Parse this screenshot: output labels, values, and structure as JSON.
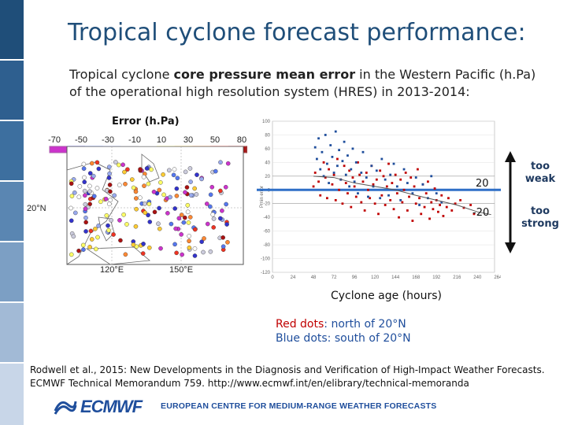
{
  "slide": {
    "title": "Tropical cyclone forecast performance:",
    "subtitle_pre": "Tropical cyclone ",
    "subtitle_bold": "core pressure mean error",
    "subtitle_post": " in the Western Pacific (h.Pa) of the operational high resolution system (HRES) in 2013-2014:",
    "colors": {
      "title": "#1f4e79",
      "accent": "#1f4e9c",
      "red_dots": "#c00000"
    }
  },
  "map": {
    "error_label": "Error (h.Pa)",
    "colorbar_ticks": [
      "-70",
      "-50",
      "-30",
      "-10",
      "10",
      "30",
      "50",
      "80"
    ],
    "colorbar_colors": [
      "#cc33cc",
      "#3333cc",
      "#5577ee",
      "#99aaee",
      "#ccccdd",
      "#ffffff",
      "#ffff66",
      "#ffcc33",
      "#ff8833",
      "#ee3322",
      "#aa1111"
    ],
    "lat_label": "20°N",
    "lon_labels": [
      "120°E",
      "150°E"
    ]
  },
  "annotations": {
    "plus_value": "20",
    "minus_value": "-20",
    "too_weak": "too weak",
    "too_strong": "too strong",
    "x_axis_label": "Cyclone age (hours)",
    "red_dots_key": "Red dots",
    "red_dots_desc": ": north of 20°N",
    "blue_dots_key": "Blue dots",
    "blue_dots_desc": ": south of 20°N"
  },
  "reference": {
    "text": "Rodwell et al., 2015: New Developments in the Diagnosis and Verification of High-Impact Weather Forecasts. ECMWF Technical Memorandum 759.   http://www.ecmwf.int/en/elibrary/technical-memoranda"
  },
  "footer": {
    "logo": "ECMWF",
    "tagline": "EUROPEAN CENTRE FOR MEDIUM-RANGE WEATHER FORECASTS"
  },
  "chart_data": {
    "type": "scatter",
    "title": "",
    "xlabel": "Cyclone age (hours)",
    "ylabel": "Pmin error",
    "xlim": [
      0,
      260
    ],
    "ylim": [
      -120,
      100
    ],
    "xticks": [
      0,
      24,
      48,
      72,
      96,
      120,
      144,
      168,
      192,
      216,
      240,
      264
    ],
    "yticks": [
      100,
      80,
      60,
      40,
      20,
      0,
      -20,
      -40,
      -60,
      -80,
      -100,
      -120
    ],
    "ytick_labels": [
      "100",
      "80",
      "60",
      "40",
      "20",
      "0",
      "-20",
      "-40",
      "-60",
      "-80",
      "-100",
      "-120"
    ],
    "xtick_labels": [
      "0",
      "24",
      "48",
      "72",
      "96",
      "120",
      "144",
      "168",
      "192",
      "216",
      "240",
      "264"
    ],
    "reference_lines": [
      20,
      -20
    ],
    "series": [
      {
        "name": "Red dots",
        "color": "#c00000",
        "points": [
          [
            48,
            5
          ],
          [
            50,
            25
          ],
          [
            54,
            12
          ],
          [
            56,
            -8
          ],
          [
            60,
            40
          ],
          [
            62,
            18
          ],
          [
            64,
            -12
          ],
          [
            66,
            30
          ],
          [
            70,
            8
          ],
          [
            72,
            22
          ],
          [
            74,
            -15
          ],
          [
            76,
            45
          ],
          [
            78,
            0
          ],
          [
            80,
            15
          ],
          [
            82,
            -20
          ],
          [
            84,
            35
          ],
          [
            86,
            10
          ],
          [
            88,
            -5
          ],
          [
            90,
            28
          ],
          [
            92,
            -25
          ],
          [
            94,
            18
          ],
          [
            96,
            5
          ],
          [
            98,
            -10
          ],
          [
            100,
            40
          ],
          [
            102,
            22
          ],
          [
            104,
            -18
          ],
          [
            106,
            12
          ],
          [
            108,
            -30
          ],
          [
            110,
            25
          ],
          [
            112,
            0
          ],
          [
            114,
            -12
          ],
          [
            116,
            35
          ],
          [
            118,
            8
          ],
          [
            120,
            -20
          ],
          [
            122,
            15
          ],
          [
            124,
            -35
          ],
          [
            126,
            28
          ],
          [
            128,
            -8
          ],
          [
            130,
            20
          ],
          [
            132,
            -22
          ],
          [
            134,
            5
          ],
          [
            136,
            38
          ],
          [
            138,
            -15
          ],
          [
            140,
            10
          ],
          [
            142,
            -28
          ],
          [
            144,
            22
          ],
          [
            146,
            -5
          ],
          [
            148,
            -40
          ],
          [
            150,
            15
          ],
          [
            152,
            -18
          ],
          [
            154,
            0
          ],
          [
            156,
            25
          ],
          [
            158,
            -30
          ],
          [
            160,
            -10
          ],
          [
            162,
            18
          ],
          [
            164,
            -45
          ],
          [
            166,
            5
          ],
          [
            168,
            -20
          ],
          [
            170,
            30
          ],
          [
            172,
            -12
          ],
          [
            174,
            -35
          ],
          [
            176,
            8
          ],
          [
            178,
            -25
          ],
          [
            180,
            -5
          ],
          [
            182,
            12
          ],
          [
            184,
            -42
          ],
          [
            186,
            -18
          ],
          [
            188,
            -28
          ],
          [
            190,
            2
          ],
          [
            192,
            -15
          ],
          [
            194,
            -32
          ],
          [
            196,
            -22
          ],
          [
            198,
            -8
          ],
          [
            200,
            -38
          ],
          [
            204,
            -25
          ],
          [
            206,
            -12
          ],
          [
            210,
            -30
          ],
          [
            214,
            -20
          ],
          [
            220,
            -15
          ],
          [
            224,
            -26
          ],
          [
            232,
            -22
          ],
          [
            236,
            -35
          ]
        ]
      },
      {
        "name": "Blue dots",
        "color": "#1f4e9c",
        "points": [
          [
            50,
            62
          ],
          [
            52,
            45
          ],
          [
            54,
            75
          ],
          [
            56,
            30
          ],
          [
            58,
            55
          ],
          [
            60,
            20
          ],
          [
            62,
            80
          ],
          [
            64,
            38
          ],
          [
            66,
            10
          ],
          [
            68,
            65
          ],
          [
            70,
            48
          ],
          [
            72,
            25
          ],
          [
            74,
            85
          ],
          [
            76,
            35
          ],
          [
            78,
            58
          ],
          [
            80,
            15
          ],
          [
            82,
            42
          ],
          [
            84,
            70
          ],
          [
            86,
            22
          ],
          [
            88,
            50
          ],
          [
            90,
            5
          ],
          [
            92,
            30
          ],
          [
            94,
            60
          ],
          [
            96,
            12
          ],
          [
            98,
            40
          ],
          [
            100,
            -5
          ],
          [
            104,
            25
          ],
          [
            106,
            55
          ],
          [
            110,
            18
          ],
          [
            112,
            -10
          ],
          [
            116,
            35
          ],
          [
            118,
            5
          ],
          [
            122,
            28
          ],
          [
            126,
            -12
          ],
          [
            128,
            45
          ],
          [
            132,
            15
          ],
          [
            136,
            -8
          ],
          [
            138,
            22
          ],
          [
            142,
            38
          ],
          [
            146,
            5
          ],
          [
            150,
            -15
          ],
          [
            154,
            30
          ],
          [
            158,
            10
          ],
          [
            164,
            -5
          ],
          [
            168,
            18
          ],
          [
            172,
            -22
          ],
          [
            176,
            8
          ],
          [
            182,
            -12
          ],
          [
            186,
            20
          ],
          [
            192,
            -5
          ],
          [
            198,
            -18
          ]
        ]
      },
      {
        "name": "mean error",
        "color": "#555555",
        "line": [
          [
            48,
            20
          ],
          [
            72,
            18
          ],
          [
            96,
            10
          ],
          [
            120,
            5
          ],
          [
            144,
            0
          ],
          [
            168,
            -8
          ],
          [
            192,
            -15
          ],
          [
            216,
            -22
          ],
          [
            240,
            -32
          ],
          [
            256,
            -36
          ]
        ]
      }
    ],
    "zero_line_color": "#2f6fc7"
  }
}
